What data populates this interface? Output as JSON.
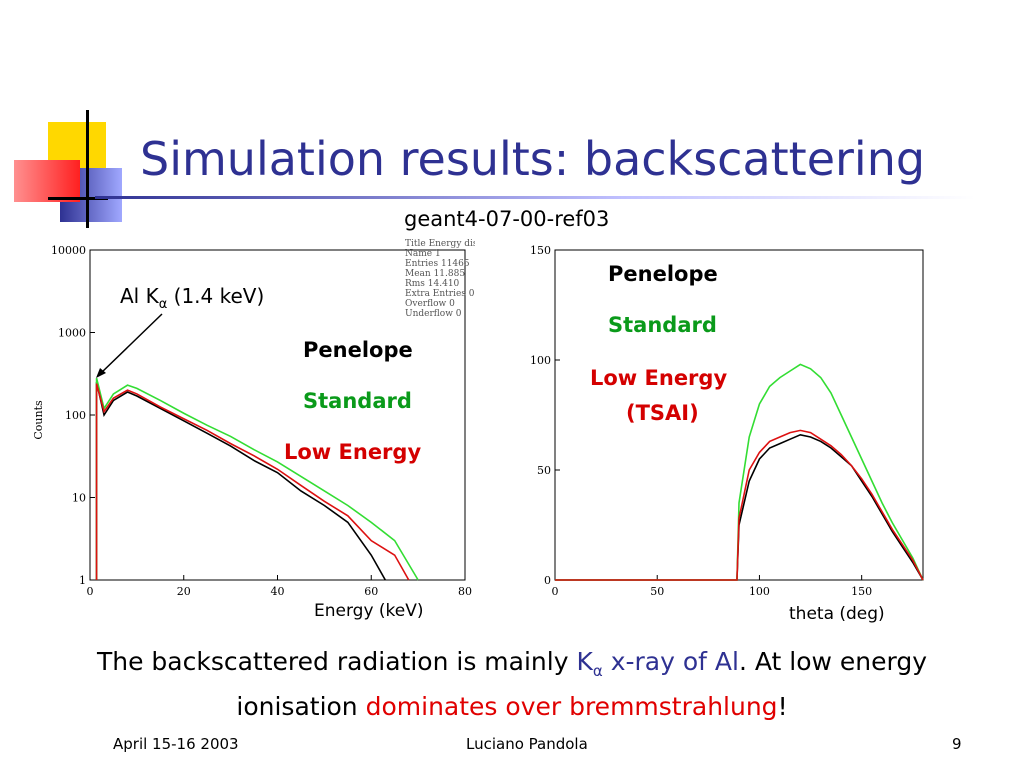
{
  "title": "Simulation results: backscattering",
  "subtitle": "geant4-07-00-ref03",
  "left_chart": {
    "annotation": "Al K",
    "annotation_sub": "α",
    "annotation_rest": " (1.4 keV)",
    "y_axis_label": "Counts",
    "x_axis_label": "Energy (keV)",
    "legend": {
      "penelope": "Penelope",
      "standard": "Standard",
      "low_energy": "Low Energy"
    },
    "stats": [
      "Title Energy distrit",
      "Name  1",
      "Entries  11465",
      "Mean  11.885",
      "Rms  14.410",
      "Extra Entries  0",
      "Overflow  0",
      "Underflow  0"
    ]
  },
  "right_chart": {
    "x_axis_label": "theta (deg)",
    "legend": {
      "penelope": "Penelope",
      "standard": "Standard",
      "low_energy": "Low Energy",
      "low_energy_note": "(TSAI)"
    }
  },
  "body": {
    "part1": "The backscattered radiation is mainly ",
    "k": "K",
    "k_sub": "α",
    "part2": " x-ray of Al",
    "part3": ". At low energy ionisation ",
    "part4": "dominates over bremmstrahlung",
    "part5": "!"
  },
  "footer": {
    "date": "April 15-16 2003",
    "author": "Luciano Pandola",
    "page": "9"
  },
  "colors": {
    "penelope": "#000000",
    "standard": "#33dd33",
    "low_energy": "#dd1111",
    "title": "#2e3192"
  },
  "chart_data": [
    {
      "type": "line",
      "xlabel": "Energy (keV)",
      "ylabel": "Counts",
      "xlim": [
        0,
        80
      ],
      "ylim": [
        1,
        10000
      ],
      "yscale": "log",
      "x_ticks": [
        0,
        20,
        40,
        60,
        80
      ],
      "y_ticks": [
        1,
        10,
        100,
        1000,
        10000
      ],
      "series": [
        {
          "name": "Penelope",
          "x": [
            1.4,
            3,
            5,
            8,
            10,
            15,
            20,
            25,
            30,
            35,
            40,
            45,
            50,
            55,
            60,
            63
          ],
          "y": [
            250,
            100,
            150,
            190,
            170,
            120,
            85,
            60,
            42,
            28,
            20,
            12,
            8,
            5,
            2,
            1
          ]
        },
        {
          "name": "Standard",
          "x": [
            1.4,
            3,
            5,
            8,
            10,
            15,
            20,
            25,
            30,
            35,
            40,
            45,
            50,
            55,
            60,
            65,
            70
          ],
          "y": [
            280,
            120,
            180,
            230,
            210,
            150,
            105,
            75,
            55,
            38,
            27,
            18,
            12,
            8,
            5,
            3,
            1
          ]
        },
        {
          "name": "Low Energy",
          "x": [
            1.4,
            3,
            5,
            8,
            10,
            15,
            20,
            25,
            30,
            35,
            40,
            45,
            50,
            55,
            60,
            65,
            68
          ],
          "y": [
            240,
            110,
            160,
            200,
            180,
            125,
            90,
            65,
            45,
            32,
            22,
            14,
            9,
            6,
            3,
            2,
            1
          ]
        }
      ]
    },
    {
      "type": "line",
      "xlabel": "theta (deg)",
      "ylabel": "",
      "xlim": [
        0,
        180
      ],
      "ylim": [
        0,
        150
      ],
      "x_ticks": [
        0,
        50,
        100,
        150
      ],
      "y_ticks": [
        0,
        50,
        100,
        150
      ],
      "series": [
        {
          "name": "Penelope",
          "x": [
            0,
            89,
            90,
            95,
            100,
            105,
            110,
            115,
            120,
            125,
            130,
            135,
            140,
            145,
            150,
            155,
            160,
            165,
            170,
            175,
            180
          ],
          "y": [
            0,
            0,
            25,
            45,
            55,
            60,
            62,
            64,
            66,
            65,
            63,
            60,
            56,
            52,
            45,
            38,
            30,
            22,
            15,
            8,
            0
          ]
        },
        {
          "name": "Standard",
          "x": [
            0,
            89,
            90,
            95,
            100,
            105,
            110,
            115,
            120,
            125,
            130,
            135,
            140,
            145,
            150,
            155,
            160,
            165,
            170,
            175,
            180
          ],
          "y": [
            0,
            0,
            35,
            65,
            80,
            88,
            92,
            95,
            98,
            96,
            92,
            85,
            75,
            65,
            55,
            45,
            35,
            26,
            18,
            10,
            0
          ]
        },
        {
          "name": "Low Energy",
          "x": [
            0,
            89,
            90,
            95,
            100,
            105,
            110,
            115,
            120,
            125,
            130,
            135,
            140,
            145,
            150,
            155,
            160,
            165,
            170,
            175,
            180
          ],
          "y": [
            0,
            0,
            28,
            50,
            58,
            63,
            65,
            67,
            68,
            67,
            64,
            61,
            57,
            52,
            46,
            39,
            31,
            23,
            16,
            9,
            0
          ]
        }
      ]
    }
  ]
}
